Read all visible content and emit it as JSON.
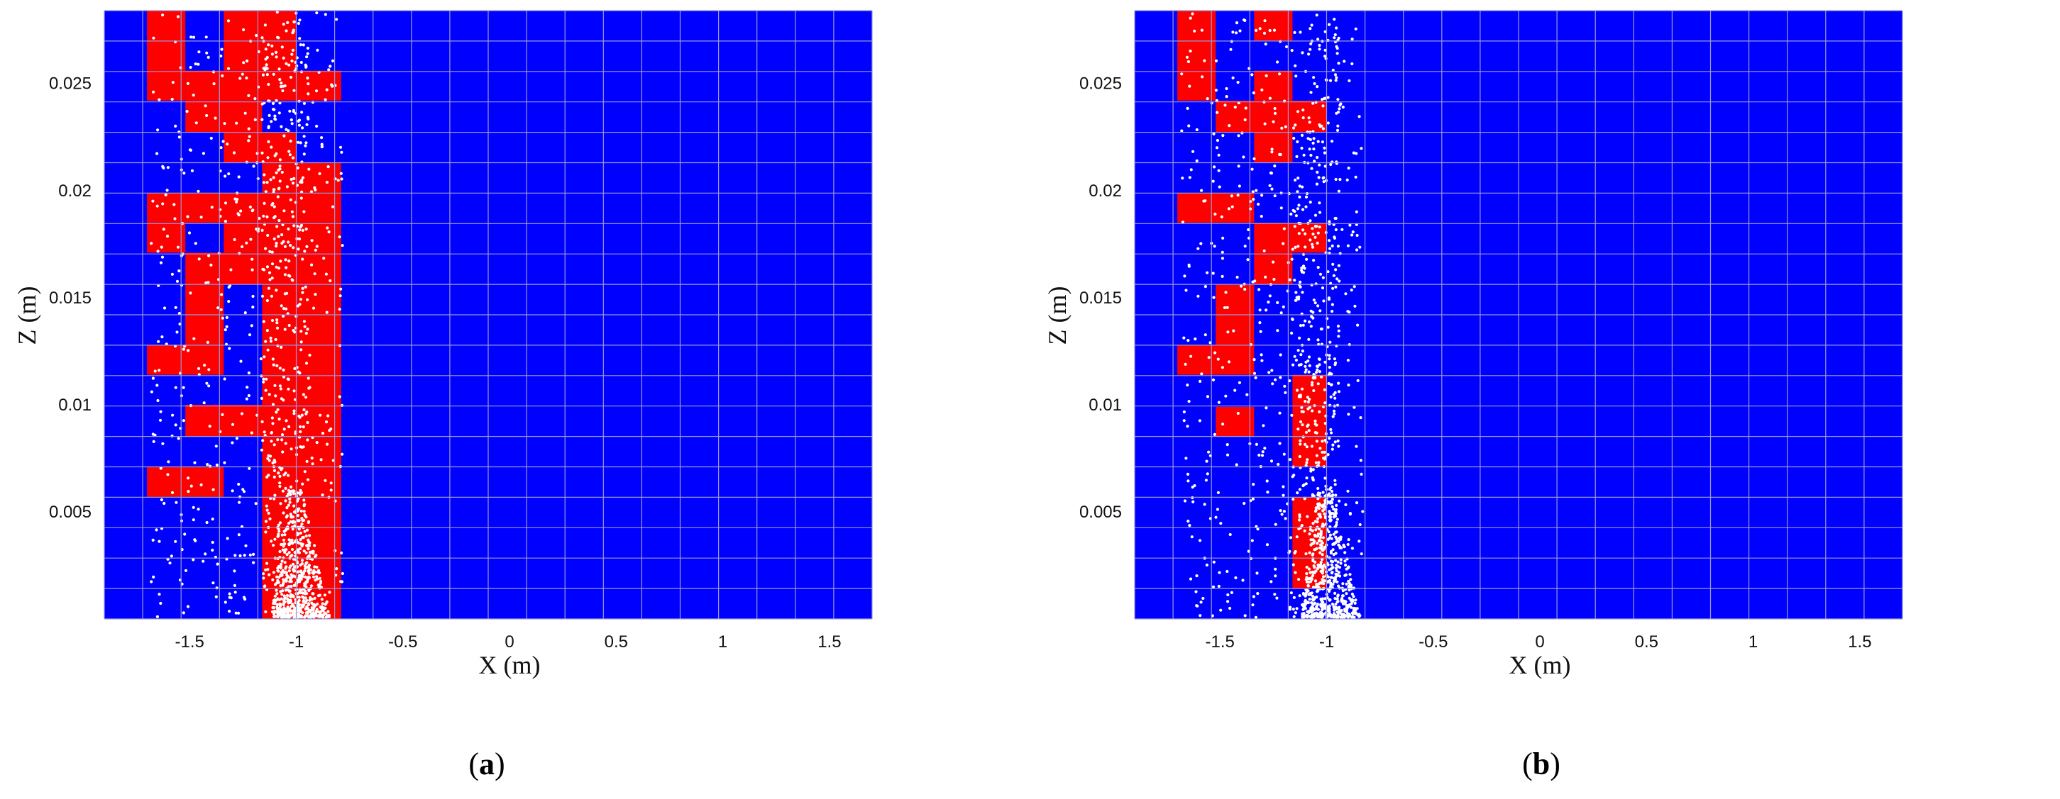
{
  "chart_data": [
    {
      "type": "heatmap",
      "panel_label_open": "(",
      "panel_label_letter": "a",
      "panel_label_close": ")",
      "xlabel": "X (m)",
      "ylabel": "Z (m)",
      "xlim": [
        -1.9,
        1.7
      ],
      "ylim": [
        0,
        0.0284
      ],
      "xticks": [
        -1.5,
        -1,
        -0.5,
        0,
        0.5,
        1,
        1.5
      ],
      "xtick_labels": [
        "-1.5",
        "-1",
        "-0.5",
        "0",
        "0.5",
        "1",
        "1.5"
      ],
      "yticks": [
        0.005,
        0.01,
        0.015,
        0.02,
        0.025
      ],
      "ytick_labels": [
        "0.005",
        "0.01",
        "0.015",
        "0.02",
        "0.025"
      ],
      "grid": true,
      "cell_size": [
        0.1806,
        0.00142
      ],
      "colors": {
        "background": "#0000ff",
        "cell": "#ff0000",
        "particle": "#ffffff",
        "grid": "#9a9ad8"
      },
      "red_cells": [
        [
          -1.7,
          0.0284,
          -1.52,
          0.0242
        ],
        [
          -1.34,
          0.0284,
          -1.0,
          0.0256
        ],
        [
          -1.52,
          0.0256,
          -0.79,
          0.0242
        ],
        [
          -1.52,
          0.0242,
          -1.16,
          0.0227
        ],
        [
          -1.34,
          0.0227,
          -1.0,
          0.0213
        ],
        [
          -1.16,
          0.0213,
          -0.79,
          0.0199
        ],
        [
          -1.7,
          0.0199,
          -0.79,
          0.0185
        ],
        [
          -1.7,
          0.0185,
          -1.52,
          0.0171
        ],
        [
          -1.34,
          0.0185,
          -0.79,
          0.0171
        ],
        [
          -1.52,
          0.0171,
          -0.79,
          0.0156
        ],
        [
          -1.52,
          0.0156,
          -1.34,
          0.0128
        ],
        [
          -1.16,
          0.0156,
          -0.79,
          0.0128
        ],
        [
          -1.7,
          0.0128,
          -1.34,
          0.0114
        ],
        [
          -1.16,
          0.0128,
          -0.79,
          0.01
        ],
        [
          -1.52,
          0.01,
          -0.79,
          0.0085
        ],
        [
          -1.16,
          0.0085,
          -0.79,
          0.0071
        ],
        [
          -1.7,
          0.0071,
          -1.34,
          0.0057
        ],
        [
          -1.16,
          0.0071,
          -0.79,
          0.0
        ]
      ]
    },
    {
      "type": "heatmap",
      "panel_label_open": "(",
      "panel_label_letter": "b",
      "panel_label_close": ")",
      "xlabel": "X (m)",
      "ylabel": "Z (m)",
      "xlim": [
        -1.9,
        1.7
      ],
      "ylim": [
        0,
        0.0284
      ],
      "xticks": [
        -1.5,
        -1,
        -0.5,
        0,
        0.5,
        1,
        1.5
      ],
      "xtick_labels": [
        "-1.5",
        "-1",
        "-0.5",
        "0",
        "0.5",
        "1",
        "1.5"
      ],
      "yticks": [
        0.005,
        0.01,
        0.015,
        0.02,
        0.025
      ],
      "ytick_labels": [
        "0.005",
        "0.01",
        "0.015",
        "0.02",
        "0.025"
      ],
      "grid": true,
      "cell_size": [
        0.1806,
        0.00142
      ],
      "colors": {
        "background": "#0000ff",
        "cell": "#ff0000",
        "particle": "#ffffff",
        "grid": "#9a9ad8"
      },
      "red_cells": [
        [
          -1.7,
          0.0284,
          -1.52,
          0.0242
        ],
        [
          -1.34,
          0.0284,
          -1.16,
          0.027
        ],
        [
          -1.34,
          0.0256,
          -1.16,
          0.0242
        ],
        [
          -1.52,
          0.0242,
          -1.0,
          0.0227
        ],
        [
          -1.34,
          0.0227,
          -1.16,
          0.0213
        ],
        [
          -1.7,
          0.0199,
          -1.34,
          0.0185
        ],
        [
          -1.34,
          0.0185,
          -1.0,
          0.0171
        ],
        [
          -1.34,
          0.0171,
          -1.16,
          0.0156
        ],
        [
          -1.52,
          0.0156,
          -1.34,
          0.0128
        ],
        [
          -1.7,
          0.0128,
          -1.34,
          0.0114
        ],
        [
          -1.16,
          0.0114,
          -1.0,
          0.0071
        ],
        [
          -1.52,
          0.0099,
          -1.34,
          0.0085
        ],
        [
          -1.16,
          0.0057,
          -1.0,
          0.0014
        ]
      ]
    }
  ]
}
